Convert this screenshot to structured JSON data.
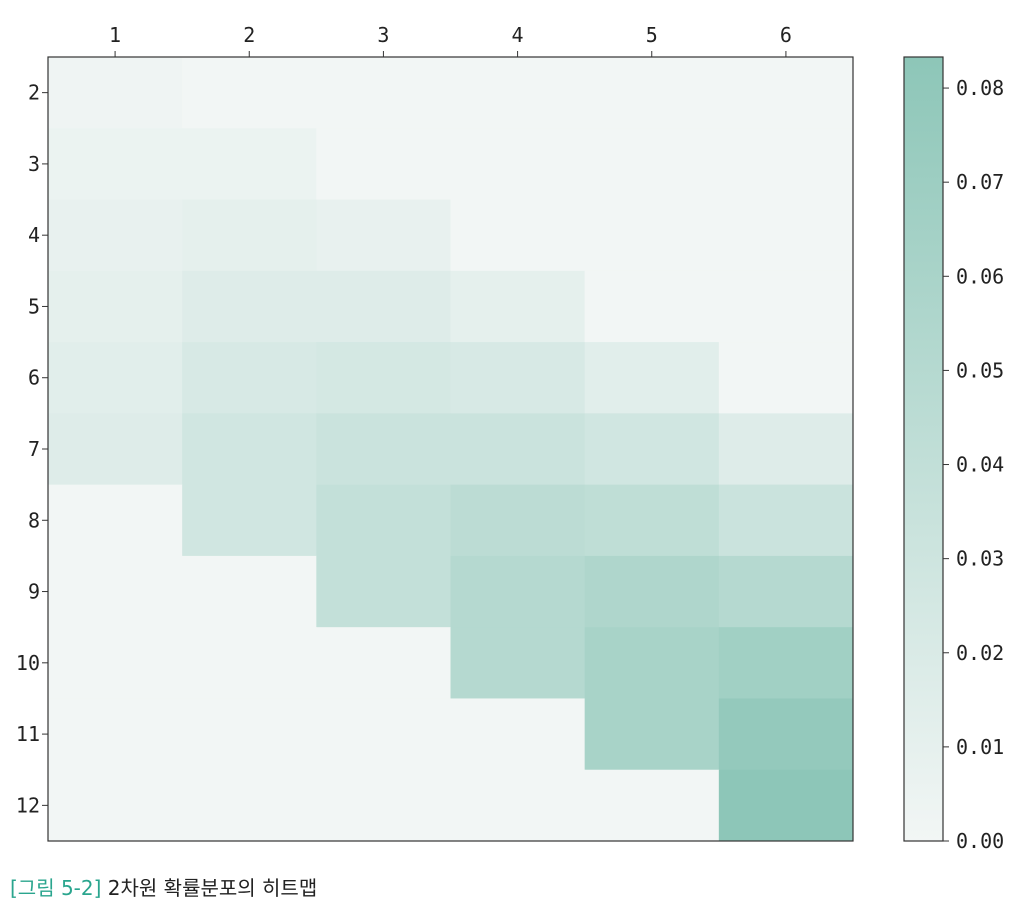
{
  "caption": {
    "figure_label": "[그림 5-2]",
    "text": "2차원 확률분포의 히트맵"
  },
  "colors": {
    "low": "#f2f6f5",
    "high": "#8dc6b8",
    "caption_accent": "#2aa58e"
  },
  "chart_data": {
    "type": "heatmap",
    "title": "",
    "xlabel": "",
    "ylabel": "",
    "x": [
      1,
      2,
      3,
      4,
      5,
      6
    ],
    "y": [
      2,
      3,
      4,
      5,
      6,
      7,
      8,
      9,
      10,
      11,
      12
    ],
    "x_axis_position": "top",
    "colorbar": {
      "range": [
        0,
        0.0833
      ],
      "ticks": [
        "0.00",
        "0.01",
        "0.02",
        "0.03",
        "0.04",
        "0.05",
        "0.06",
        "0.07",
        "0.08"
      ],
      "tick_values": [
        0,
        0.01,
        0.02,
        0.03,
        0.04,
        0.05,
        0.06,
        0.07,
        0.08
      ]
    },
    "values": [
      [
        0.0028,
        0,
        0,
        0,
        0,
        0
      ],
      [
        0.0056,
        0.0056,
        0,
        0,
        0,
        0
      ],
      [
        0.0083,
        0.0111,
        0.0083,
        0,
        0,
        0
      ],
      [
        0.0111,
        0.0167,
        0.0167,
        0.0111,
        0,
        0
      ],
      [
        0.0139,
        0.0222,
        0.025,
        0.0222,
        0.0139,
        0
      ],
      [
        0.0167,
        0.0278,
        0.0333,
        0.0333,
        0.0278,
        0.0167
      ],
      [
        0,
        0.0278,
        0.0389,
        0.0444,
        0.0417,
        0.0333
      ],
      [
        0,
        0,
        0.0389,
        0.05,
        0.0556,
        0.05
      ],
      [
        0,
        0,
        0,
        0.05,
        0.0611,
        0.0667
      ],
      [
        0,
        0,
        0,
        0,
        0.0611,
        0.0778
      ],
      [
        0,
        0,
        0,
        0,
        0,
        0.0833
      ]
    ]
  }
}
